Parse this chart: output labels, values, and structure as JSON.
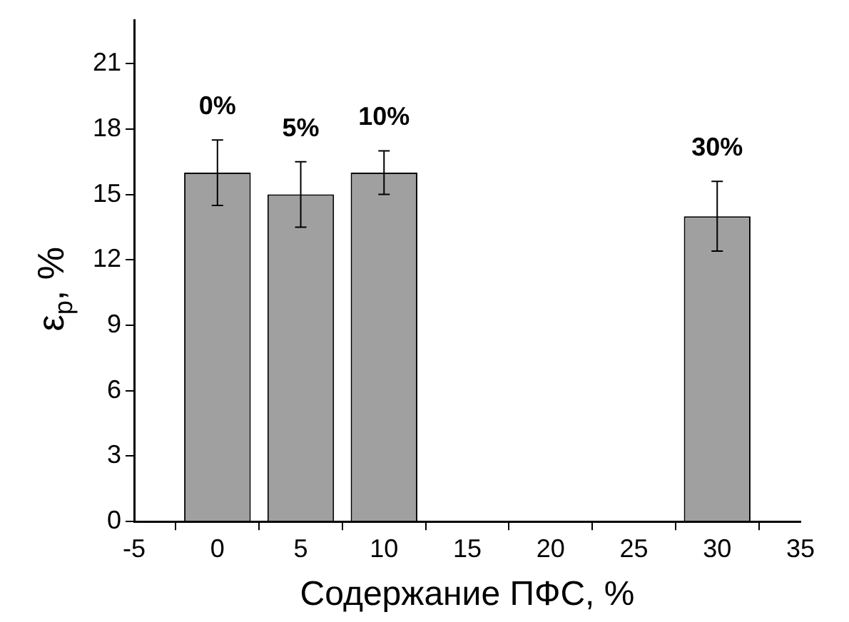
{
  "chart_data": {
    "type": "bar",
    "xlabel": "Содержание ПФС, %",
    "ylabel": "ε$_{p}$, %",
    "x": [
      0,
      5,
      10,
      30
    ],
    "values": [
      16,
      15,
      16,
      14
    ],
    "errors": [
      1.5,
      1.5,
      1,
      1.6
    ],
    "color": "#a0a0a0",
    "xlim": [
      -5,
      35
    ],
    "xticks": [
      -5,
      0,
      5,
      10,
      15,
      20,
      25,
      30,
      35
    ],
    "ylim": [
      0,
      23
    ],
    "yticks": [
      0,
      3,
      6,
      9,
      12,
      15,
      18,
      21
    ],
    "annotations": [
      {
        "text": "0%",
        "x": 0,
        "y": 17.5
      },
      {
        "text": "5%",
        "x": 5,
        "y": 16.5
      },
      {
        "text": "10%",
        "x": 10,
        "y": 17
      },
      {
        "text": "30%",
        "x": 30,
        "y": 15.6
      }
    ],
    "grid": false,
    "legend": false
  }
}
